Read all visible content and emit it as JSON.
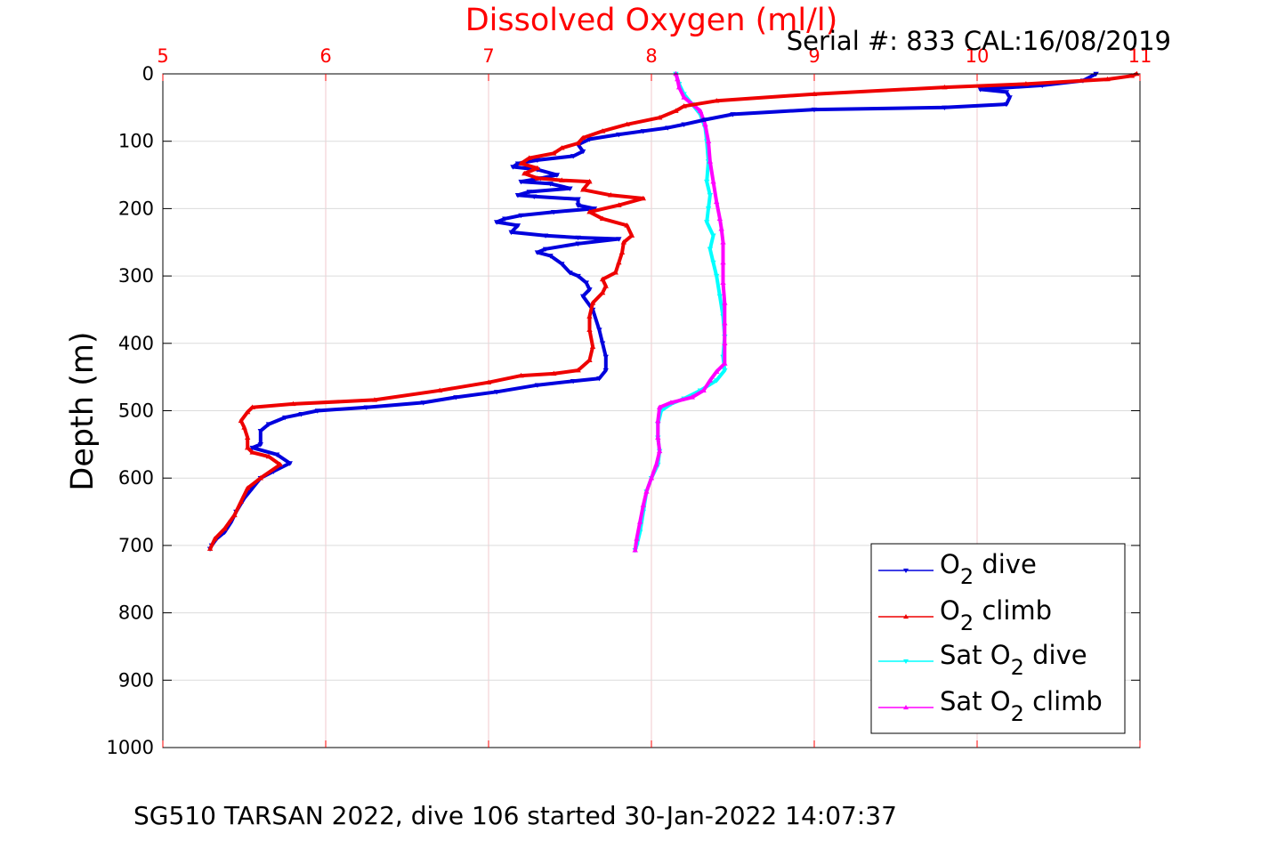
{
  "chart_data": {
    "type": "line",
    "title": "Dissolved Oxygen (ml/l)",
    "subtitle": "Serial #: 833  CAL:16/08/2019",
    "ylabel": "Depth (m)",
    "footer": "SG510 TARSAN 2022, dive 106 started 30-Jan-2022 14:07:37",
    "xlim": [
      5,
      11
    ],
    "ylim": [
      0,
      1000
    ],
    "y_reversed": true,
    "x_axis_position": "top",
    "grid": true,
    "xticks": [
      "5",
      "6",
      "7",
      "8",
      "9",
      "10",
      "11"
    ],
    "yticks": [
      "0",
      "100",
      "200",
      "300",
      "400",
      "500",
      "600",
      "700",
      "800",
      "900",
      "1000"
    ],
    "legend_placement": "bottom-right",
    "colors": {
      "title": "#ff0000",
      "xticks": "#ff0000",
      "grid": "#f0c8cc",
      "axis": "#000000"
    },
    "series": [
      {
        "name": "O2 dive",
        "legend_main": "O",
        "legend_sub": "2",
        "legend_rest": " dive",
        "color": "#0000dd",
        "marker": "down-triangle",
        "points": [
          [
            10.73,
            0
          ],
          [
            10.65,
            10
          ],
          [
            10.4,
            17
          ],
          [
            10.02,
            23
          ],
          [
            10.18,
            27
          ],
          [
            10.2,
            35
          ],
          [
            10.18,
            45
          ],
          [
            9.8,
            50
          ],
          [
            9.0,
            53
          ],
          [
            8.5,
            60
          ],
          [
            8.33,
            68
          ],
          [
            8.2,
            75
          ],
          [
            8.1,
            80
          ],
          [
            7.95,
            85
          ],
          [
            7.8,
            90
          ],
          [
            7.62,
            97
          ],
          [
            7.55,
            105
          ],
          [
            7.58,
            115
          ],
          [
            7.52,
            122
          ],
          [
            7.3,
            128
          ],
          [
            7.18,
            133
          ],
          [
            7.15,
            138
          ],
          [
            7.3,
            142
          ],
          [
            7.42,
            150
          ],
          [
            7.32,
            155
          ],
          [
            7.2,
            160
          ],
          [
            7.38,
            163
          ],
          [
            7.5,
            170
          ],
          [
            7.25,
            175
          ],
          [
            7.18,
            180
          ],
          [
            7.28,
            182
          ],
          [
            7.55,
            186
          ],
          [
            7.55,
            195
          ],
          [
            7.65,
            200
          ],
          [
            7.4,
            205
          ],
          [
            7.2,
            210
          ],
          [
            7.1,
            215
          ],
          [
            7.05,
            220
          ],
          [
            7.18,
            225
          ],
          [
            7.14,
            235
          ],
          [
            7.35,
            240
          ],
          [
            7.55,
            243
          ],
          [
            7.8,
            245
          ],
          [
            7.55,
            252
          ],
          [
            7.35,
            260
          ],
          [
            7.3,
            265
          ],
          [
            7.38,
            270
          ],
          [
            7.45,
            282
          ],
          [
            7.5,
            295
          ],
          [
            7.55,
            300
          ],
          [
            7.6,
            310
          ],
          [
            7.62,
            320
          ],
          [
            7.58,
            330
          ],
          [
            7.64,
            350
          ],
          [
            7.68,
            380
          ],
          [
            7.7,
            400
          ],
          [
            7.72,
            420
          ],
          [
            7.72,
            440
          ],
          [
            7.68,
            452
          ],
          [
            7.52,
            456
          ],
          [
            7.3,
            462
          ],
          [
            7.05,
            472
          ],
          [
            6.8,
            480
          ],
          [
            6.6,
            488
          ],
          [
            6.25,
            495
          ],
          [
            5.95,
            500
          ],
          [
            5.85,
            505
          ],
          [
            5.75,
            510
          ],
          [
            5.65,
            520
          ],
          [
            5.6,
            530
          ],
          [
            5.6,
            550
          ],
          [
            5.55,
            555
          ],
          [
            5.7,
            565
          ],
          [
            5.78,
            578
          ],
          [
            5.68,
            590
          ],
          [
            5.6,
            600
          ],
          [
            5.55,
            615
          ],
          [
            5.5,
            630
          ],
          [
            5.45,
            650
          ],
          [
            5.42,
            665
          ],
          [
            5.38,
            680
          ],
          [
            5.33,
            690
          ],
          [
            5.3,
            700
          ],
          [
            5.29,
            705
          ]
        ]
      },
      {
        "name": "O2 climb",
        "legend_main": "O",
        "legend_sub": "2",
        "legend_rest": " climb",
        "color": "#ee0000",
        "marker": "up-triangle",
        "points": [
          [
            5.29,
            705
          ],
          [
            5.32,
            690
          ],
          [
            5.38,
            675
          ],
          [
            5.44,
            655
          ],
          [
            5.48,
            635
          ],
          [
            5.52,
            615
          ],
          [
            5.6,
            600
          ],
          [
            5.72,
            580
          ],
          [
            5.65,
            568
          ],
          [
            5.55,
            562
          ],
          [
            5.52,
            555
          ],
          [
            5.52,
            540
          ],
          [
            5.5,
            525
          ],
          [
            5.48,
            515
          ],
          [
            5.52,
            502
          ],
          [
            5.55,
            495
          ],
          [
            5.8,
            490
          ],
          [
            6.3,
            484
          ],
          [
            6.7,
            470
          ],
          [
            7.0,
            458
          ],
          [
            7.2,
            448
          ],
          [
            7.4,
            445
          ],
          [
            7.55,
            440
          ],
          [
            7.62,
            425
          ],
          [
            7.64,
            405
          ],
          [
            7.62,
            380
          ],
          [
            7.62,
            360
          ],
          [
            7.64,
            340
          ],
          [
            7.7,
            325
          ],
          [
            7.72,
            315
          ],
          [
            7.7,
            305
          ],
          [
            7.78,
            295
          ],
          [
            7.8,
            280
          ],
          [
            7.82,
            265
          ],
          [
            7.83,
            250
          ],
          [
            7.88,
            240
          ],
          [
            7.85,
            225
          ],
          [
            7.7,
            215
          ],
          [
            7.62,
            205
          ],
          [
            7.8,
            195
          ],
          [
            7.95,
            185
          ],
          [
            7.75,
            180
          ],
          [
            7.58,
            172
          ],
          [
            7.62,
            160
          ],
          [
            7.45,
            158
          ],
          [
            7.3,
            155
          ],
          [
            7.22,
            148
          ],
          [
            7.3,
            140
          ],
          [
            7.2,
            133
          ],
          [
            7.25,
            125
          ],
          [
            7.4,
            118
          ],
          [
            7.45,
            110
          ],
          [
            7.55,
            103
          ],
          [
            7.58,
            95
          ],
          [
            7.7,
            85
          ],
          [
            7.85,
            75
          ],
          [
            8.05,
            65
          ],
          [
            8.15,
            55
          ],
          [
            8.2,
            48
          ],
          [
            8.4,
            40
          ],
          [
            9.0,
            30
          ],
          [
            9.8,
            20
          ],
          [
            10.3,
            15
          ],
          [
            10.8,
            8
          ],
          [
            10.95,
            3
          ],
          [
            10.98,
            0
          ]
        ]
      },
      {
        "name": "Sat O2 dive",
        "legend_main": "Sat O",
        "legend_sub": "2",
        "legend_rest": " dive",
        "color": "#00ffff",
        "marker": "down-triangle",
        "points": [
          [
            8.15,
            0
          ],
          [
            8.17,
            15
          ],
          [
            8.2,
            30
          ],
          [
            8.25,
            45
          ],
          [
            8.3,
            60
          ],
          [
            8.33,
            80
          ],
          [
            8.34,
            100
          ],
          [
            8.35,
            130
          ],
          [
            8.34,
            160
          ],
          [
            8.36,
            180
          ],
          [
            8.35,
            200
          ],
          [
            8.34,
            220
          ],
          [
            8.38,
            240
          ],
          [
            8.36,
            260
          ],
          [
            8.38,
            280
          ],
          [
            8.4,
            300
          ],
          [
            8.42,
            330
          ],
          [
            8.44,
            360
          ],
          [
            8.45,
            390
          ],
          [
            8.44,
            420
          ],
          [
            8.45,
            440
          ],
          [
            8.4,
            455
          ],
          [
            8.3,
            470
          ],
          [
            8.2,
            482
          ],
          [
            8.12,
            490
          ],
          [
            8.06,
            500
          ],
          [
            8.04,
            520
          ],
          [
            8.04,
            540
          ],
          [
            8.05,
            560
          ],
          [
            8.04,
            580
          ],
          [
            8.0,
            600
          ],
          [
            7.97,
            620
          ],
          [
            7.95,
            650
          ],
          [
            7.93,
            680
          ],
          [
            7.91,
            700
          ],
          [
            7.9,
            707
          ]
        ]
      },
      {
        "name": "Sat O2 climb",
        "legend_main": "Sat O",
        "legend_sub": "2",
        "legend_rest": " climb",
        "color": "#ff00ff",
        "marker": "up-triangle",
        "points": [
          [
            7.9,
            707
          ],
          [
            7.91,
            690
          ],
          [
            7.93,
            665
          ],
          [
            7.95,
            640
          ],
          [
            7.97,
            620
          ],
          [
            8.0,
            600
          ],
          [
            8.03,
            580
          ],
          [
            8.05,
            560
          ],
          [
            8.04,
            540
          ],
          [
            8.04,
            515
          ],
          [
            8.05,
            495
          ],
          [
            8.12,
            488
          ],
          [
            8.25,
            480
          ],
          [
            8.32,
            470
          ],
          [
            8.36,
            455
          ],
          [
            8.4,
            442
          ],
          [
            8.45,
            430
          ],
          [
            8.45,
            400
          ],
          [
            8.45,
            370
          ],
          [
            8.45,
            340
          ],
          [
            8.44,
            310
          ],
          [
            8.44,
            280
          ],
          [
            8.44,
            250
          ],
          [
            8.43,
            230
          ],
          [
            8.42,
            215
          ],
          [
            8.4,
            190
          ],
          [
            8.38,
            160
          ],
          [
            8.36,
            130
          ],
          [
            8.35,
            100
          ],
          [
            8.33,
            75
          ],
          [
            8.3,
            55
          ],
          [
            8.25,
            45
          ],
          [
            8.2,
            35
          ],
          [
            8.17,
            20
          ],
          [
            8.16,
            8
          ],
          [
            8.15,
            0
          ]
        ]
      }
    ]
  }
}
